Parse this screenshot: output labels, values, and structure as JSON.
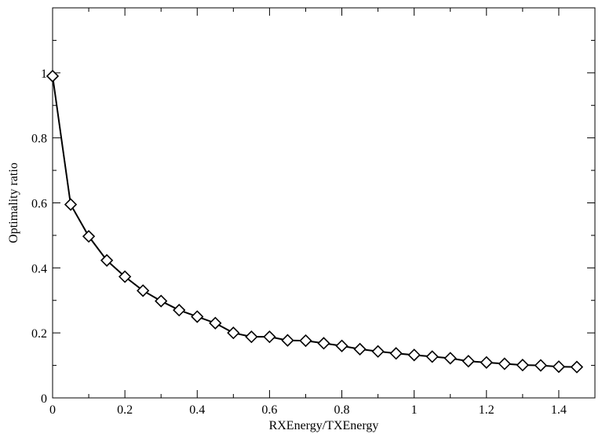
{
  "chart_data": {
    "type": "line",
    "title": "",
    "xlabel": "RXEnergy/TXEnergy",
    "ylabel": "Optimality ratio",
    "xlim": [
      0,
      1.5
    ],
    "ylim": [
      0,
      1.2
    ],
    "x_major_ticks": [
      0,
      0.2,
      0.4,
      0.6,
      0.8,
      1,
      1.2,
      1.4
    ],
    "x_tick_labels": [
      "0",
      "0.2",
      "0.4",
      "0.6",
      "0.8",
      "1",
      "1.2",
      "1.4"
    ],
    "y_major_ticks": [
      0,
      0.2,
      0.4,
      0.6,
      0.8,
      1
    ],
    "y_tick_labels": [
      "0",
      "0.2",
      "0.4",
      "0.6",
      "0.8",
      "1"
    ],
    "grid": false,
    "legend": "none",
    "marker": "diamond",
    "line_color": "#000000",
    "marker_fill": "#ffffff",
    "series": [
      {
        "x": [
          0,
          0.05,
          0.1,
          0.15,
          0.2,
          0.25,
          0.3,
          0.35,
          0.4,
          0.45,
          0.5,
          0.55,
          0.6,
          0.65,
          0.7,
          0.75,
          0.8,
          0.85,
          0.9,
          0.95,
          1.0,
          1.05,
          1.1,
          1.15,
          1.2,
          1.25,
          1.3,
          1.35,
          1.4,
          1.45
        ],
        "values": [
          0.99,
          0.595,
          0.497,
          0.423,
          0.373,
          0.33,
          0.298,
          0.27,
          0.25,
          0.23,
          0.2,
          0.188,
          0.188,
          0.177,
          0.176,
          0.168,
          0.16,
          0.15,
          0.143,
          0.137,
          0.132,
          0.127,
          0.122,
          0.113,
          0.109,
          0.105,
          0.101,
          0.1,
          0.096,
          0.095
        ]
      }
    ]
  }
}
